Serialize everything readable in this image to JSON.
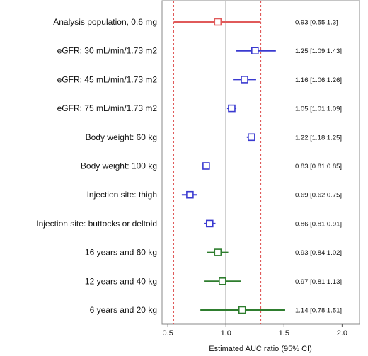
{
  "chart_data": {
    "type": "forest",
    "xlabel": "Estimated AUC ratio (95% CI)",
    "xlim": [
      0.45,
      2.15
    ],
    "xticks": [
      0.5,
      1.0,
      1.5,
      2.0
    ],
    "xtick_labels": [
      "0.5",
      "1.0",
      "1.5",
      "2.0"
    ],
    "reference_line": 1.0,
    "bounds": [
      0.55,
      1.3
    ],
    "grid": false,
    "colors": {
      "population": "#e05a5a",
      "covariate": "#3a3ad0",
      "pediatric": "#2e7d2e",
      "bounds": "#e05a5a",
      "reference": "#777777"
    },
    "rows": [
      {
        "label": "Analysis population, 0.6 mg",
        "estimate": 0.93,
        "lower": 0.55,
        "upper": 1.3,
        "ci_text": "0.93 [0.55;1.3]",
        "group": "population"
      },
      {
        "label": "eGFR: 30 mL/min/1.73 m2",
        "estimate": 1.25,
        "lower": 1.09,
        "upper": 1.43,
        "ci_text": "1.25 [1.09;1.43]",
        "group": "covariate"
      },
      {
        "label": "eGFR: 45 mL/min/1.73 m2",
        "estimate": 1.16,
        "lower": 1.06,
        "upper": 1.26,
        "ci_text": "1.16 [1.06;1.26]",
        "group": "covariate"
      },
      {
        "label": "eGFR: 75 mL/min/1.73 m2",
        "estimate": 1.05,
        "lower": 1.01,
        "upper": 1.09,
        "ci_text": "1.05 [1.01;1.09]",
        "group": "covariate"
      },
      {
        "label": "Body weight: 60 kg",
        "estimate": 1.22,
        "lower": 1.18,
        "upper": 1.25,
        "ci_text": "1.22 [1.18;1.25]",
        "group": "covariate"
      },
      {
        "label": "Body weight: 100 kg",
        "estimate": 0.83,
        "lower": 0.81,
        "upper": 0.85,
        "ci_text": "0.83 [0.81;0.85]",
        "group": "covariate"
      },
      {
        "label": "Injection site: thigh",
        "estimate": 0.69,
        "lower": 0.62,
        "upper": 0.75,
        "ci_text": "0.69 [0.62;0.75]",
        "group": "covariate"
      },
      {
        "label": "Injection site: buttocks or deltoid",
        "estimate": 0.86,
        "lower": 0.81,
        "upper": 0.91,
        "ci_text": "0.86 [0.81;0.91]",
        "group": "covariate"
      },
      {
        "label": "16 years and 60 kg",
        "estimate": 0.93,
        "lower": 0.84,
        "upper": 1.02,
        "ci_text": "0.93 [0.84;1.02]",
        "group": "pediatric"
      },
      {
        "label": "12 years and 40 kg",
        "estimate": 0.97,
        "lower": 0.81,
        "upper": 1.13,
        "ci_text": "0.97 [0.81;1.13]",
        "group": "pediatric"
      },
      {
        "label": "6 years and 20 kg",
        "estimate": 1.14,
        "lower": 0.78,
        "upper": 1.51,
        "ci_text": "1.14 [0.78;1.51]",
        "group": "pediatric"
      }
    ]
  }
}
